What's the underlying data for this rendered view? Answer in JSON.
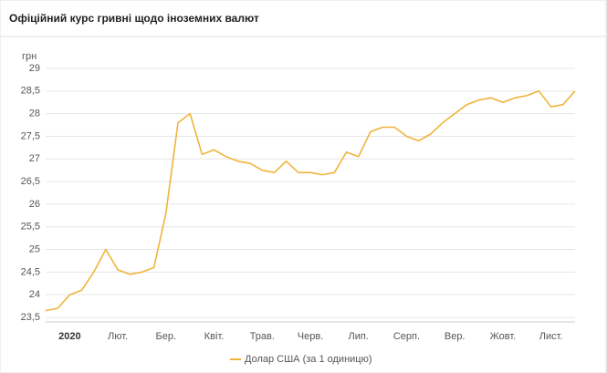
{
  "chart_data": {
    "type": "line",
    "title": "Офіційний курс гривні щодо іноземних валют",
    "y_label": "грн",
    "categories": [
      null,
      null,
      "2020",
      null,
      null,
      null,
      "Лют.",
      null,
      null,
      null,
      "Бер.",
      null,
      null,
      null,
      "Квіт.",
      null,
      null,
      null,
      "Трав.",
      null,
      null,
      null,
      "Черв.",
      null,
      null,
      null,
      "Лип.",
      null,
      null,
      null,
      "Серп.",
      null,
      null,
      null,
      "Вер.",
      null,
      null,
      null,
      "Жовт.",
      null,
      null,
      null,
      "Лист.",
      null,
      null
    ],
    "series": [
      {
        "name": "Долар США (за 1 одиницю)",
        "color": "#f0b43c",
        "values": [
          23.65,
          23.7,
          24.0,
          24.1,
          24.5,
          25.0,
          24.55,
          24.45,
          24.5,
          24.6,
          25.8,
          27.8,
          28.0,
          27.1,
          27.2,
          27.05,
          26.95,
          26.9,
          26.75,
          26.7,
          26.95,
          26.7,
          26.7,
          26.65,
          26.7,
          27.15,
          27.05,
          27.6,
          27.7,
          27.7,
          27.5,
          27.4,
          27.55,
          27.8,
          28.0,
          28.2,
          28.3,
          28.35,
          28.25,
          28.35,
          28.4,
          28.5,
          28.15,
          28.2,
          28.5
        ]
      }
    ],
    "ylim": [
      23.5,
      29
    ],
    "yticks": [
      {
        "value": 23.5,
        "label": "23,5"
      },
      24,
      {
        "value": 24.5,
        "label": "24,5"
      },
      25,
      {
        "value": 25.5,
        "label": "25,5"
      },
      26,
      {
        "value": 26.5,
        "label": "26,5"
      },
      27,
      {
        "value": 27.5,
        "label": "27,5"
      },
      28,
      {
        "value": 28.5,
        "label": "28,5"
      },
      29
    ],
    "grid": true,
    "legend": "bottom"
  }
}
